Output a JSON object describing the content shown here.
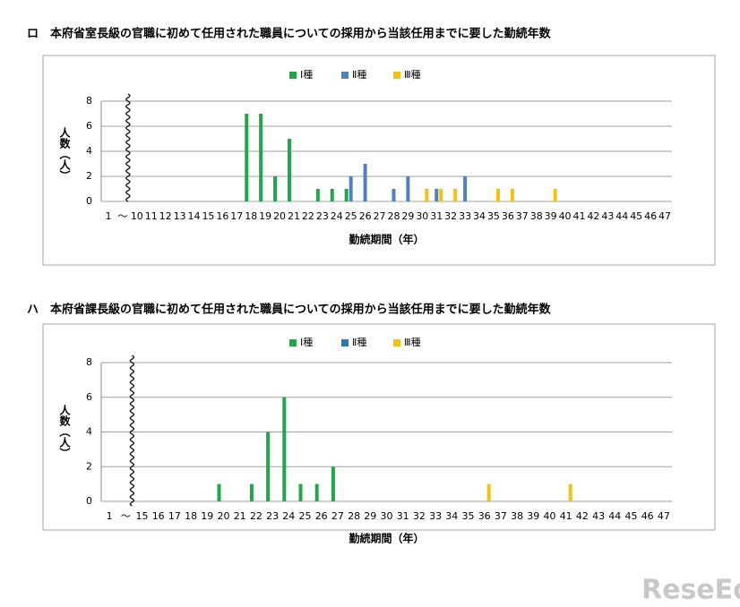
{
  "chart_data": [
    {
      "type": "bar",
      "title": "ロ　本府省室長級の官職に初めて任用された職員についての採用から当該任用までに要した勤続年数",
      "x_label": "勤続期間（年）",
      "y_label": "人数（人）",
      "categories": [
        "1",
        "〜",
        "10",
        "11",
        "12",
        "13",
        "14",
        "15",
        "16",
        "17",
        "18",
        "19",
        "20",
        "21",
        "22",
        "23",
        "24",
        "25",
        "26",
        "27",
        "28",
        "29",
        "30",
        "31",
        "32",
        "33",
        "34",
        "35",
        "36",
        "37",
        "38",
        "39",
        "40",
        "41",
        "42",
        "43",
        "44",
        "45",
        "46",
        "47"
      ],
      "series": [
        {
          "name": "Ⅰ種",
          "color": "#1fa84b",
          "values": [
            0,
            0,
            0,
            0,
            0,
            0,
            0,
            0,
            0,
            0,
            7,
            7,
            2,
            5,
            0,
            1,
            1,
            1,
            0,
            0,
            0,
            0,
            0,
            0,
            0,
            0,
            0,
            0,
            0,
            0,
            0,
            0,
            0,
            0,
            0,
            0,
            0,
            0,
            0,
            0
          ]
        },
        {
          "name": "Ⅱ種",
          "color": "#4f81bd",
          "values": [
            0,
            0,
            0,
            0,
            0,
            0,
            0,
            0,
            0,
            0,
            0,
            0,
            0,
            0,
            0,
            0,
            0,
            2,
            3,
            0,
            1,
            2,
            0,
            1,
            0,
            2,
            0,
            0,
            0,
            0,
            0,
            0,
            0,
            0,
            0,
            0,
            0,
            0,
            0,
            0
          ]
        },
        {
          "name": "Ⅲ種",
          "color": "#f4c20d",
          "values": [
            0,
            0,
            0,
            0,
            0,
            0,
            0,
            0,
            0,
            0,
            0,
            0,
            0,
            0,
            0,
            0,
            0,
            0,
            0,
            0,
            0,
            0,
            1,
            1,
            1,
            0,
            0,
            1,
            1,
            0,
            0,
            1,
            0,
            0,
            0,
            0,
            0,
            0,
            0,
            0
          ]
        }
      ],
      "ylim": [
        0,
        8
      ],
      "yticks": [
        0,
        2,
        4,
        6,
        8
      ],
      "grid": true,
      "legend": "top"
    },
    {
      "type": "bar",
      "title": "ハ　本府省課長級の官職に初めて任用された職員についての採用から当該任用までに要した勤続年数",
      "x_label": "勤続期間（年）",
      "y_label": "人数（人）",
      "categories": [
        "1",
        "〜",
        "15",
        "16",
        "17",
        "18",
        "19",
        "20",
        "21",
        "22",
        "23",
        "24",
        "25",
        "26",
        "27",
        "28",
        "29",
        "30",
        "31",
        "32",
        "33",
        "34",
        "35",
        "36",
        "37",
        "38",
        "39",
        "40",
        "41",
        "42",
        "43",
        "44",
        "45",
        "46",
        "47"
      ],
      "series": [
        {
          "name": "Ⅰ種",
          "color": "#1fa84b",
          "values": [
            0,
            0,
            0,
            0,
            0,
            0,
            0,
            1,
            0,
            1,
            4,
            6,
            1,
            1,
            2,
            0,
            0,
            0,
            0,
            0,
            0,
            0,
            0,
            0,
            0,
            0,
            0,
            0,
            0,
            0,
            0,
            0,
            0,
            0,
            0
          ]
        },
        {
          "name": "Ⅱ種",
          "color": "#2e75b6",
          "values": [
            0,
            0,
            0,
            0,
            0,
            0,
            0,
            0,
            0,
            0,
            0,
            0,
            0,
            0,
            0,
            0,
            0,
            0,
            0,
            0,
            0,
            0,
            0,
            0,
            0,
            0,
            0,
            0,
            0,
            0,
            0,
            0,
            0,
            0,
            0
          ]
        },
        {
          "name": "Ⅲ種",
          "color": "#f4c20d",
          "values": [
            0,
            0,
            0,
            0,
            0,
            0,
            0,
            0,
            0,
            0,
            0,
            0,
            0,
            0,
            0,
            0,
            0,
            0,
            0,
            0,
            0,
            0,
            0,
            1,
            0,
            0,
            0,
            0,
            1,
            0,
            0,
            0,
            0,
            0,
            0
          ]
        }
      ],
      "ylim": [
        0,
        8
      ],
      "yticks": [
        0,
        2,
        4,
        6,
        8
      ],
      "grid": true,
      "legend": "top"
    }
  ],
  "watermark": "ReseEd"
}
